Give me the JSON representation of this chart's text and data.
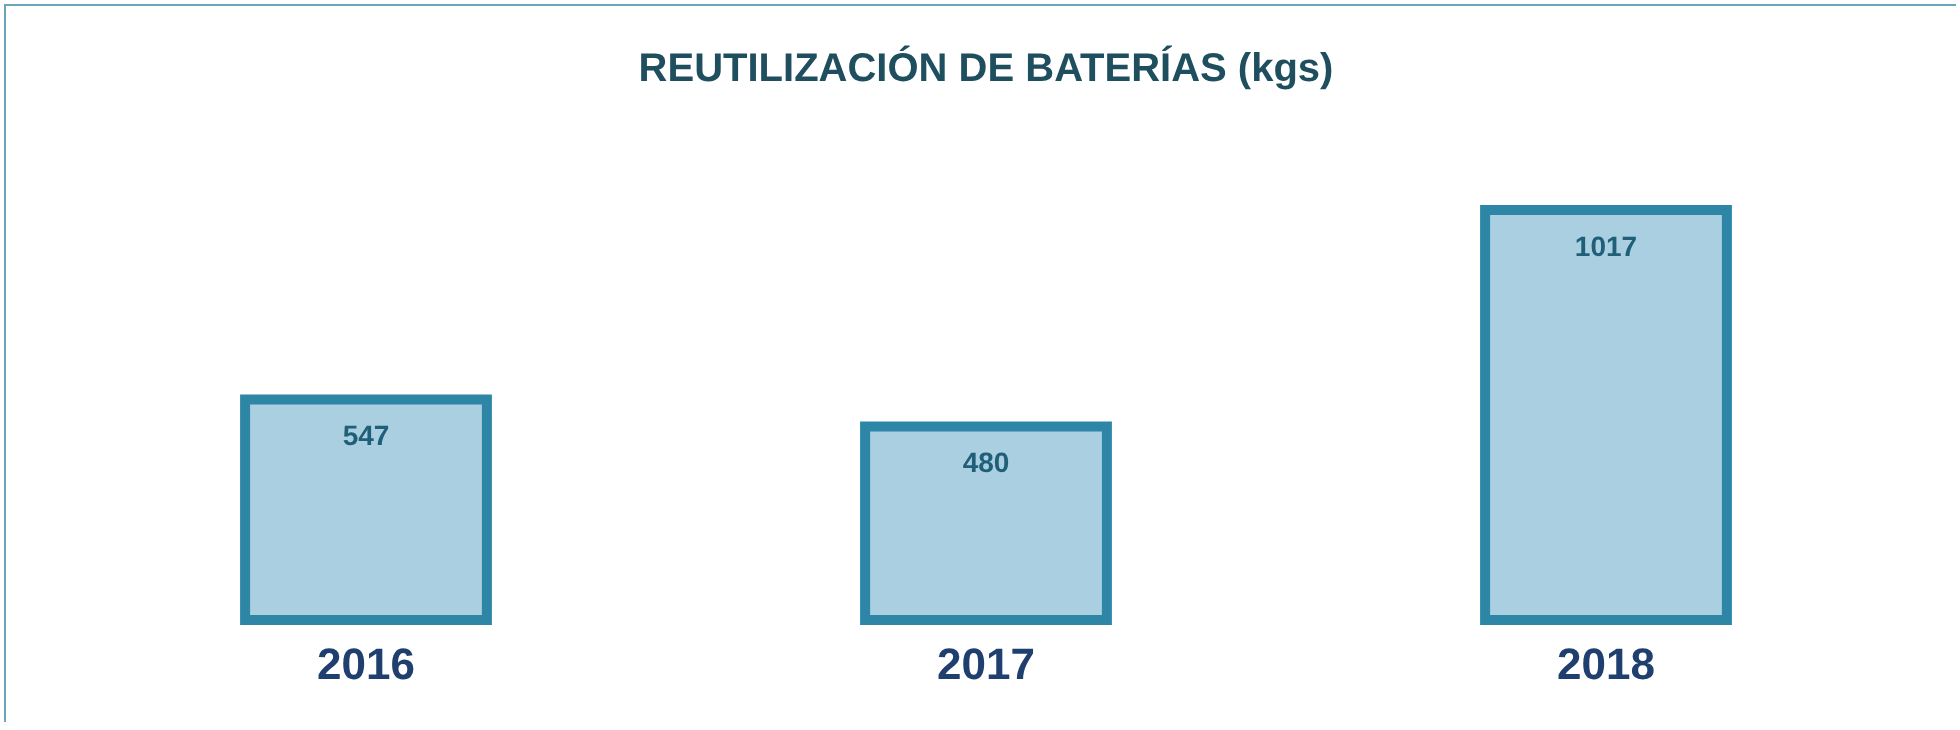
{
  "chart_data": {
    "type": "bar",
    "title": "REUTILIZACIÓN DE BATERÍAS (kgs)",
    "categories": [
      "2016",
      "2017",
      "2018"
    ],
    "values": [
      547,
      480,
      1017
    ],
    "color": "#2e86a6",
    "data_labels": true
  }
}
